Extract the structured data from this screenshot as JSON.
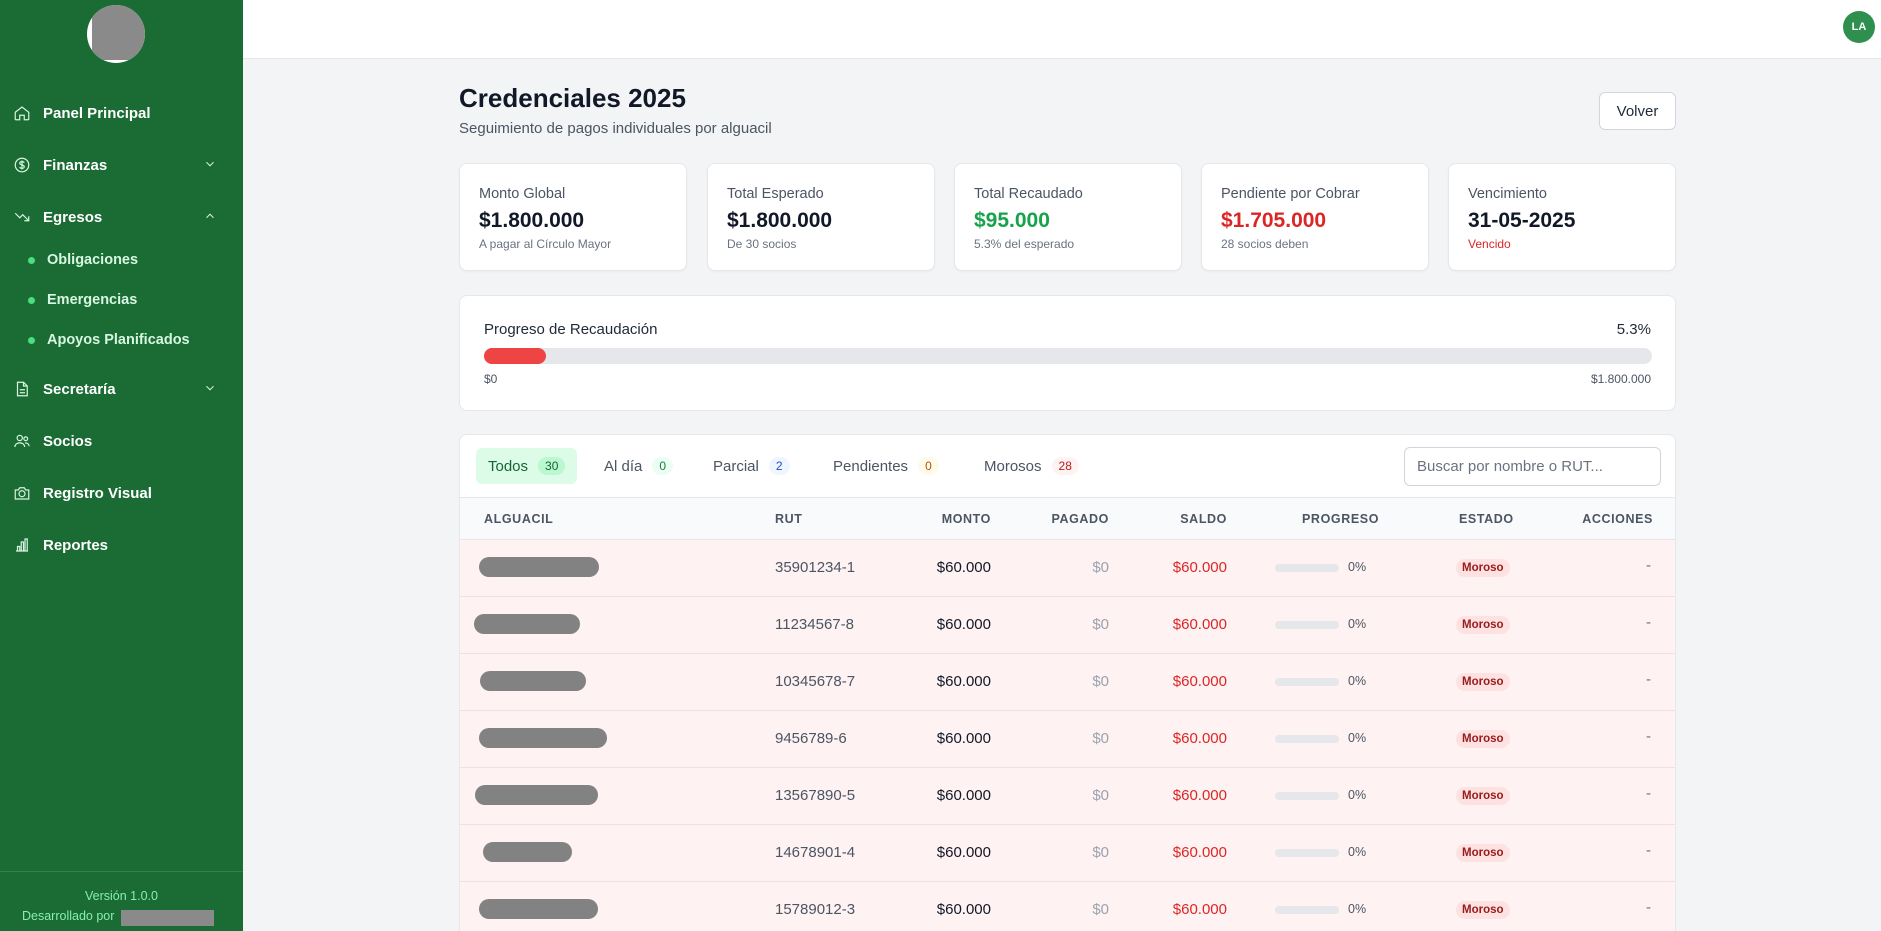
{
  "sidebar": {
    "items": [
      {
        "label": "Panel Principal",
        "icon": "home-icon"
      },
      {
        "label": "Finanzas",
        "icon": "dollar-icon",
        "expanded": false
      },
      {
        "label": "Egresos",
        "icon": "trend-down-icon",
        "expanded": true
      },
      {
        "label": "Secretaría",
        "icon": "document-icon",
        "expanded": false
      },
      {
        "label": "Socios",
        "icon": "users-icon"
      },
      {
        "label": "Registro Visual",
        "icon": "camera-icon"
      },
      {
        "label": "Reportes",
        "icon": "bar-chart-icon"
      }
    ],
    "subitems": [
      {
        "label": "Obligaciones"
      },
      {
        "label": "Emergencias"
      },
      {
        "label": "Apoyos Planificados"
      }
    ],
    "version": "Versión 1.0.0",
    "developed_by": "Desarrollado por"
  },
  "topbar": {
    "avatar_initials": "LA"
  },
  "header": {
    "title": "Credenciales 2025",
    "subtitle": "Seguimiento de pagos individuales por alguacil",
    "back_label": "Volver"
  },
  "cards": [
    {
      "label": "Monto Global",
      "value": "$1.800.000",
      "sub": "A pagar al Círculo Mayor",
      "value_color": "#111827",
      "sub_color": "#6b7280"
    },
    {
      "label": "Total Esperado",
      "value": "$1.800.000",
      "sub": "De 30 socios",
      "value_color": "#111827",
      "sub_color": "#6b7280"
    },
    {
      "label": "Total Recaudado",
      "value": "$95.000",
      "sub": "5.3% del esperado",
      "value_color": "#16a34a",
      "sub_color": "#6b7280"
    },
    {
      "label": "Pendiente por Cobrar",
      "value": "$1.705.000",
      "sub": "28 socios deben",
      "value_color": "#dc2626",
      "sub_color": "#6b7280"
    },
    {
      "label": "Vencimiento",
      "value": "31-05-2025",
      "sub": "Vencido",
      "value_color": "#111827",
      "sub_color": "#dc2626"
    }
  ],
  "progress": {
    "title": "Progreso de Recaudación",
    "percent_label": "5.3%",
    "fraction": 0.053,
    "min_label": "$0",
    "max_label": "$1.800.000"
  },
  "tabs": [
    {
      "label": "Todos",
      "count": "30",
      "count_color": "#166534",
      "count_bg": "#bbf7d0"
    },
    {
      "label": "Al día",
      "count": "0",
      "count_color": "#15803d",
      "count_bg": "#ecfdf3"
    },
    {
      "label": "Parcial",
      "count": "2",
      "count_color": "#1d4ed8",
      "count_bg": "#eff6ff"
    },
    {
      "label": "Pendientes",
      "count": "0",
      "count_color": "#b45309",
      "count_bg": "#fffbeb"
    },
    {
      "label": "Morosos",
      "count": "28",
      "count_color": "#b91c1c",
      "count_bg": "#fef2f2"
    }
  ],
  "search": {
    "placeholder": "Buscar por nombre o RUT..."
  },
  "table": {
    "columns": [
      "ALGUACIL",
      "RUT",
      "MONTO",
      "PAGADO",
      "SALDO",
      "PROGRESO",
      "ESTADO",
      "ACCIONES"
    ],
    "rows": [
      {
        "rut": "35901234-1",
        "monto": "$60.000",
        "pagado": "$0",
        "saldo": "$60.000",
        "progreso": "0%",
        "progress_fraction": 0,
        "estado": "Moroso",
        "accion": "-"
      },
      {
        "rut": "11234567-8",
        "monto": "$60.000",
        "pagado": "$0",
        "saldo": "$60.000",
        "progreso": "0%",
        "progress_fraction": 0,
        "estado": "Moroso",
        "accion": "-"
      },
      {
        "rut": "10345678-7",
        "monto": "$60.000",
        "pagado": "$0",
        "saldo": "$60.000",
        "progreso": "0%",
        "progress_fraction": 0,
        "estado": "Moroso",
        "accion": "-"
      },
      {
        "rut": "9456789-6",
        "monto": "$60.000",
        "pagado": "$0",
        "saldo": "$60.000",
        "progreso": "0%",
        "progress_fraction": 0,
        "estado": "Moroso",
        "accion": "-"
      },
      {
        "rut": "13567890-5",
        "monto": "$60.000",
        "pagado": "$0",
        "saldo": "$60.000",
        "progreso": "0%",
        "progress_fraction": 0,
        "estado": "Moroso",
        "accion": "-"
      },
      {
        "rut": "14678901-4",
        "monto": "$60.000",
        "pagado": "$0",
        "saldo": "$60.000",
        "progreso": "0%",
        "progress_fraction": 0,
        "estado": "Moroso",
        "accion": "-"
      },
      {
        "rut": "15789012-3",
        "monto": "$60.000",
        "pagado": "$0",
        "saldo": "$60.000",
        "progreso": "0%",
        "progress_fraction": 0,
        "estado": "Moroso",
        "accion": "-"
      }
    ]
  },
  "colors": {
    "sidebar_bg": "#1b6b34",
    "danger": "#dc2626",
    "success": "#16a34a"
  }
}
